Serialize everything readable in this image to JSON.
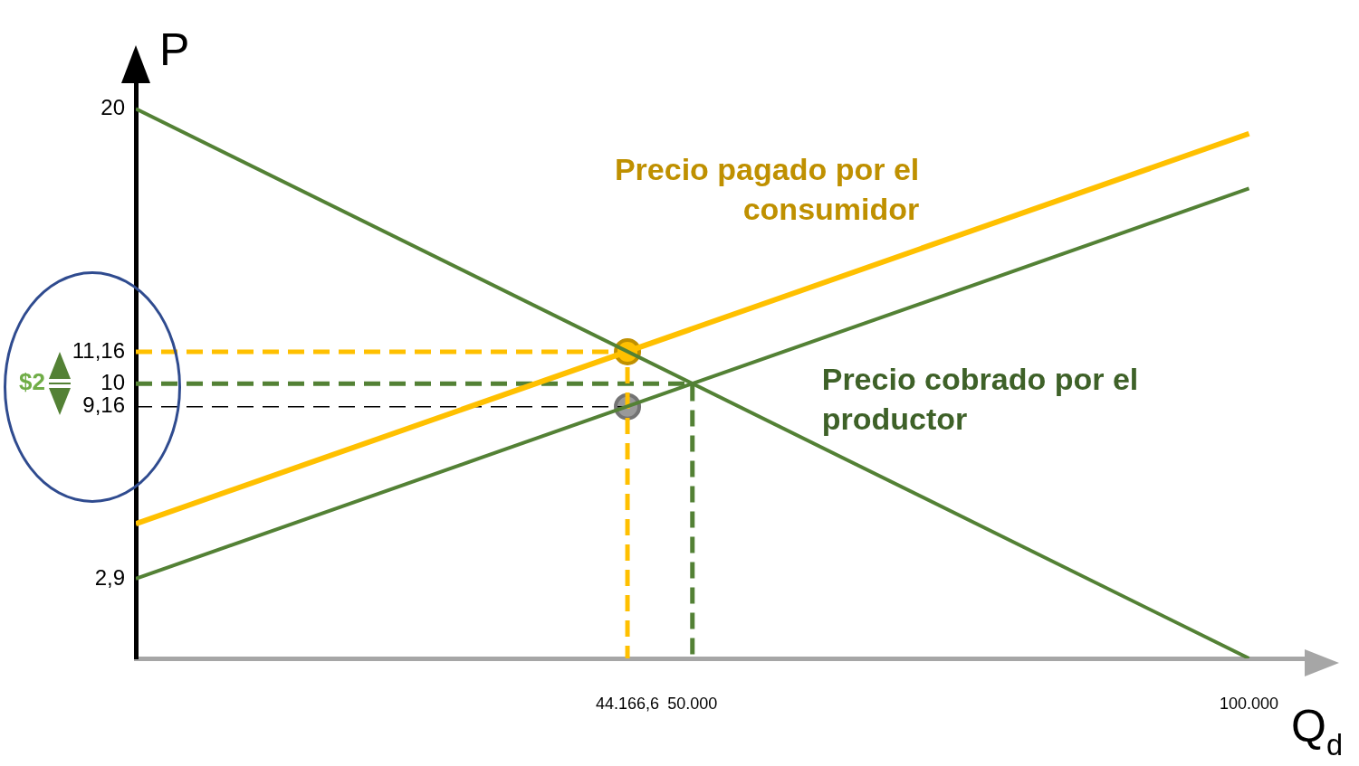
{
  "chart_data": {
    "type": "line",
    "xlabel": "Q$_{d}$",
    "ylabel": "P",
    "xlim": [
      0,
      105000
    ],
    "ylim": [
      0,
      21
    ],
    "xticks": [
      {
        "value": 44166.6,
        "label": "44.166,6"
      },
      {
        "value": 50000,
        "label": "50.000"
      },
      {
        "value": 100000,
        "label": "100.000"
      }
    ],
    "yticks": [
      {
        "value": 2.9,
        "label": "2,9"
      },
      {
        "value": 9.16,
        "label": "9,16"
      },
      {
        "value": 10,
        "label": "10"
      },
      {
        "value": 11.16,
        "label": "11,16"
      },
      {
        "value": 20,
        "label": "20"
      }
    ],
    "grid": false,
    "legend": false,
    "marker": "none",
    "line_style": "solid",
    "series": [
      {
        "color": "#538135",
        "x": [
          0,
          100000
        ],
        "values": [
          20,
          0
        ]
      },
      {
        "name": "Precio cobrado por el productor",
        "color": "#538135",
        "x": [
          0,
          100000
        ],
        "values": [
          2.9,
          17.1
        ]
      },
      {
        "name": "Precio pagado por el consumidor",
        "color": "#ffc000",
        "x": [
          0,
          100000
        ],
        "values": [
          4.9,
          19.1
        ]
      },
      {
        "color": "#ffc000",
        "line_style": "dashed",
        "x": [
          0,
          44166.6,
          44166.6
        ],
        "values": [
          11.16,
          11.16,
          0
        ]
      },
      {
        "color": "#538135",
        "line_style": "dashed",
        "x": [
          0,
          50000,
          50000
        ],
        "values": [
          10,
          10,
          0
        ]
      },
      {
        "color": "#000000",
        "line_style": "dashed",
        "x": [
          0,
          44166.6
        ],
        "values": [
          9.16,
          9.16
        ]
      },
      {
        "type": "scatter",
        "marker": "circle",
        "x": [
          44166.6,
          44166.6
        ],
        "values": [
          11.16,
          9.16
        ],
        "colors": [
          "#ffc000",
          "#999999"
        ]
      }
    ],
    "annotations": [
      "$2"
    ]
  }
}
